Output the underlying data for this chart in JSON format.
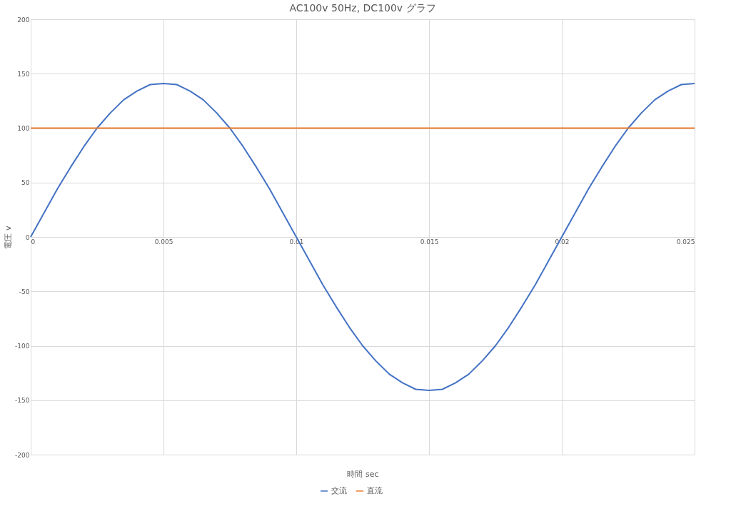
{
  "chart_data": {
    "type": "line",
    "title": "AC100v 50Hz, DC100v グラフ",
    "xlabel": "時間 sec",
    "ylabel": "電圧 v",
    "xlim": [
      0,
      0.025
    ],
    "xticks": [
      0,
      0.005,
      0.01,
      0.015,
      0.02,
      0.025
    ],
    "ylim": [
      -200,
      200
    ],
    "yticks": [
      -200,
      -150,
      -100,
      -50,
      0,
      50,
      100,
      150,
      200
    ],
    "grid": true,
    "legend": "bottom",
    "marker": "none",
    "line_style": "solid",
    "series": [
      {
        "name": "交流",
        "color": "#4472c4",
        "x": [
          0,
          0.0005,
          0.001,
          0.0015,
          0.002,
          0.0025,
          0.003,
          0.0035,
          0.004,
          0.0045,
          0.005,
          0.0055,
          0.006,
          0.0065,
          0.007,
          0.0075,
          0.008,
          0.0085,
          0.009,
          0.0095,
          0.01,
          0.0105,
          0.011,
          0.0115,
          0.012,
          0.0125,
          0.013,
          0.0135,
          0.014,
          0.0145,
          0.015,
          0.0155,
          0.016,
          0.0165,
          0.017,
          0.0175,
          0.018,
          0.0185,
          0.019,
          0.0195,
          0.02,
          0.0205,
          0.021,
          0.0215,
          0.022,
          0.0225,
          0.023,
          0.0235,
          0.024,
          0.0245,
          0.025
        ],
        "values": [
          0,
          22,
          44,
          64,
          83,
          100,
          114,
          126,
          134,
          140,
          141,
          140,
          134,
          126,
          114,
          100,
          83,
          64,
          44,
          22,
          0,
          -22,
          -44,
          -64,
          -83,
          -100,
          -114,
          -126,
          -134,
          -140,
          -141,
          -140,
          -134,
          -126,
          -114,
          -100,
          -83,
          -64,
          -44,
          -22,
          0,
          22,
          44,
          64,
          83,
          100,
          114,
          126,
          134,
          140,
          141
        ]
      },
      {
        "name": "直流",
        "color": "#ed7d31",
        "x": [
          0,
          0.025
        ],
        "values": [
          100,
          100
        ]
      }
    ]
  }
}
